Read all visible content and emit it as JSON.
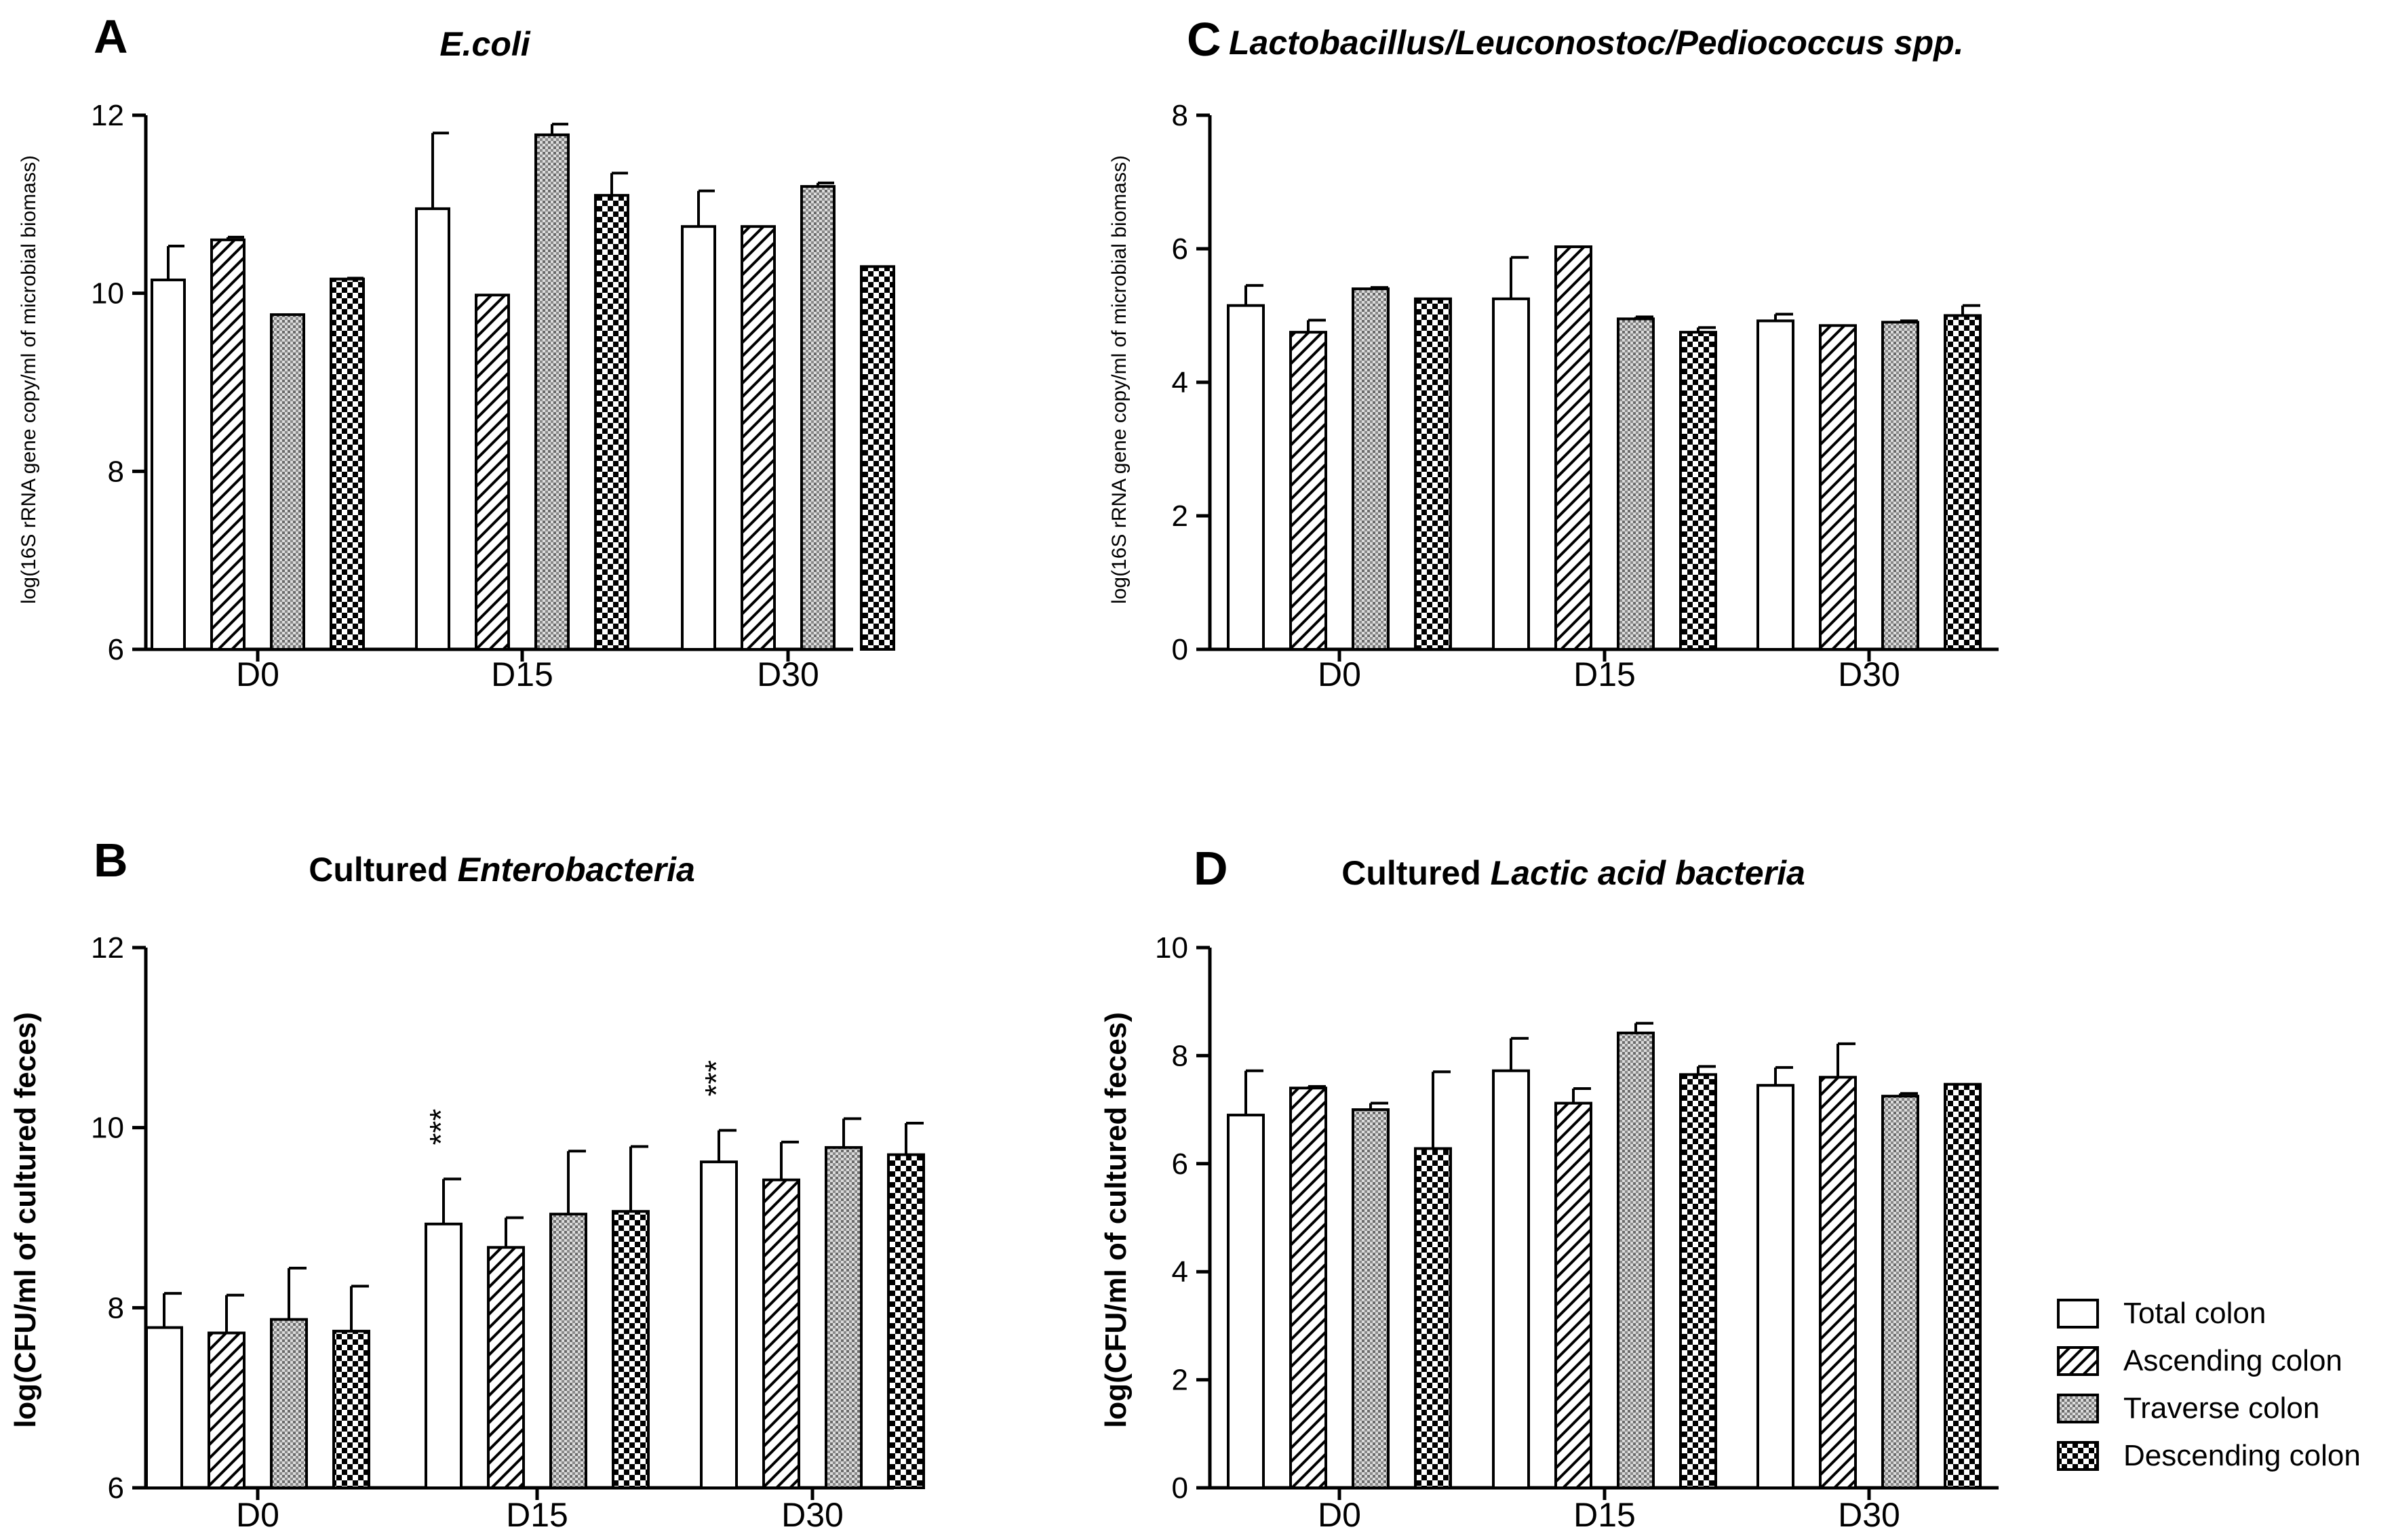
{
  "legend": [
    {
      "label": "Total colon",
      "pattern": "white"
    },
    {
      "label": "Ascending colon",
      "pattern": "hatch"
    },
    {
      "label": "Traverse colon",
      "pattern": "dots"
    },
    {
      "label": "Descending colon",
      "pattern": "checker"
    }
  ],
  "chart_data": [
    {
      "panel": "A",
      "type": "bar",
      "title": "E.coli",
      "title_parts": [
        {
          "text": "E.coli",
          "italic": true
        }
      ],
      "ylabel": "log(16S rRNA gene copy/ml of microbial biomass)",
      "xlabel": "",
      "ylim": [
        6,
        12
      ],
      "yticks": [
        6,
        8,
        10,
        12
      ],
      "categories": [
        "D0",
        "D15",
        "D30"
      ],
      "series": [
        {
          "name": "Total colon",
          "values": [
            10.15,
            10.95,
            10.75
          ],
          "errors": [
            0.38,
            0.85,
            0.4
          ]
        },
        {
          "name": "Ascending colon",
          "values": [
            10.6,
            9.98,
            10.75
          ],
          "errors": [
            0.03,
            0,
            0
          ]
        },
        {
          "name": "Traverse colon",
          "values": [
            9.76,
            11.78,
            11.2
          ],
          "errors": [
            0,
            0.12,
            0.04
          ]
        },
        {
          "name": "Descending colon",
          "values": [
            10.16,
            11.1,
            10.3
          ],
          "errors": [
            0.01,
            0.25,
            0
          ]
        }
      ],
      "annotations": []
    },
    {
      "panel": "B",
      "type": "bar",
      "title": "Cultured Enterobacteria",
      "title_parts": [
        {
          "text": "Cultured ",
          "italic": false
        },
        {
          "text": "Enterobacteria",
          "italic": true
        }
      ],
      "ylabel": "log(CFU/ml of cultured feces)",
      "xlabel": "",
      "ylim": [
        6,
        12
      ],
      "yticks": [
        6,
        8,
        10,
        12
      ],
      "categories": [
        "D0",
        "D15",
        "D30"
      ],
      "series": [
        {
          "name": "Total colon",
          "values": [
            7.78,
            8.93,
            9.62
          ],
          "errors": [
            0.38,
            0.5,
            0.35
          ]
        },
        {
          "name": "Ascending colon",
          "values": [
            7.72,
            8.67,
            9.42
          ],
          "errors": [
            0.42,
            0.33,
            0.42
          ]
        },
        {
          "name": "Traverse colon",
          "values": [
            7.87,
            9.04,
            9.78
          ],
          "errors": [
            0.57,
            0.7,
            0.32
          ]
        },
        {
          "name": "Descending colon",
          "values": [
            7.74,
            9.07,
            9.7
          ],
          "errors": [
            0.5,
            0.72,
            0.35
          ]
        }
      ],
      "annotations": [
        {
          "text": "***",
          "category": "D15",
          "series": "Total colon"
        },
        {
          "text": "***",
          "category": "D30",
          "series": "Total colon"
        }
      ]
    },
    {
      "panel": "C",
      "type": "bar",
      "title": "Lactobacillus/Leuconostoc/Pediococcus spp.",
      "title_parts": [
        {
          "text": "Lactobacillus/Leuconostoc/Pediococcus spp.",
          "italic": true
        }
      ],
      "ylabel": "log(16S rRNA gene copy/ml of microbial biomass)",
      "xlabel": "",
      "ylim": [
        0,
        8
      ],
      "yticks": [
        0,
        2,
        4,
        6,
        8
      ],
      "categories": [
        "D0",
        "D15",
        "D30"
      ],
      "series": [
        {
          "name": "Total colon",
          "values": [
            5.15,
            5.25,
            4.92
          ],
          "errors": [
            0.3,
            0.62,
            0.1
          ]
        },
        {
          "name": "Ascending colon",
          "values": [
            4.75,
            6.03,
            4.85
          ],
          "errors": [
            0.18,
            0,
            0
          ]
        },
        {
          "name": "Traverse colon",
          "values": [
            5.4,
            4.95,
            4.9
          ],
          "errors": [
            0.02,
            0.03,
            0.02
          ]
        },
        {
          "name": "Descending colon",
          "values": [
            5.25,
            4.75,
            5.0
          ],
          "errors": [
            0,
            0.07,
            0.15
          ]
        }
      ],
      "annotations": []
    },
    {
      "panel": "D",
      "type": "bar",
      "title": "Cultured Lactic acid bacteria",
      "title_parts": [
        {
          "text": "Cultured ",
          "italic": false
        },
        {
          "text": "Lactic acid bacteria",
          "italic": true
        }
      ],
      "ylabel": "log(CFU/ml of cultured feces)",
      "xlabel": "",
      "ylim": [
        0,
        10
      ],
      "yticks": [
        0,
        2,
        4,
        6,
        8,
        10
      ],
      "categories": [
        "D0",
        "D15",
        "D30"
      ],
      "series": [
        {
          "name": "Total colon",
          "values": [
            6.9,
            7.72,
            7.45
          ],
          "errors": [
            0.82,
            0.6,
            0.33
          ]
        },
        {
          "name": "Ascending colon",
          "values": [
            7.4,
            7.12,
            7.6
          ],
          "errors": [
            0.03,
            0.27,
            0.62
          ]
        },
        {
          "name": "Traverse colon",
          "values": [
            7.0,
            8.42,
            7.25
          ],
          "errors": [
            0.12,
            0.18,
            0.05
          ]
        },
        {
          "name": "Descending colon",
          "values": [
            6.28,
            7.65,
            7.47
          ],
          "errors": [
            1.42,
            0.15,
            0
          ]
        }
      ],
      "annotations": []
    }
  ]
}
